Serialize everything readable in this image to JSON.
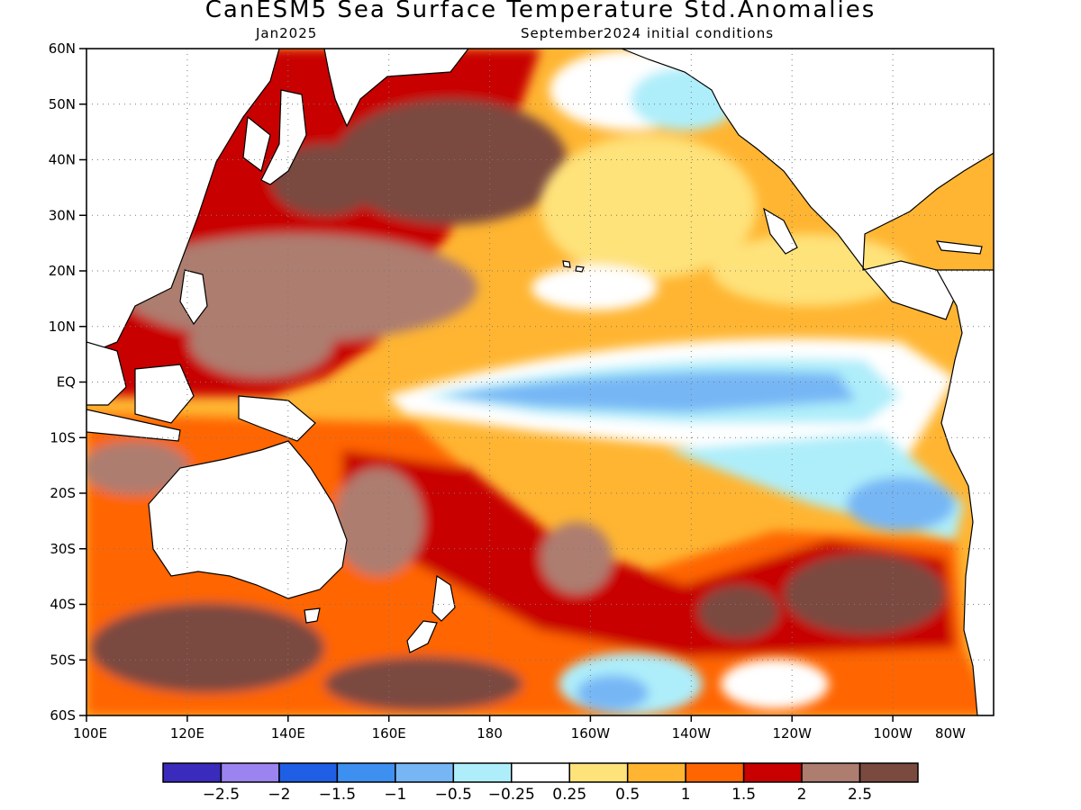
{
  "header": {
    "title": "CanESM5 Sea Surface Temperature Std.Anomalies",
    "valid_month": "Jan2025",
    "initial_conditions": "September2024 initial conditions"
  },
  "map": {
    "region": "Pacific Ocean",
    "lat_labels": [
      "60N",
      "50N",
      "40N",
      "30N",
      "20N",
      "10N",
      "EQ",
      "10S",
      "20S",
      "30S",
      "40S",
      "50S",
      "60S"
    ],
    "lon_labels": [
      "100E",
      "120E",
      "140E",
      "160E",
      "180",
      "160W",
      "140W",
      "120W",
      "100W",
      "80W"
    ],
    "grid_lines": "dotted"
  },
  "colorbar": {
    "colors": [
      "#3a2bbd",
      "#9b83f0",
      "#1e5fe6",
      "#3d8ff0",
      "#76b6f5",
      "#aeeefa",
      "#ffffff",
      "#fee27a",
      "#ffb531",
      "#ff6500",
      "#c80000",
      "#ad7d70",
      "#7a4a3f"
    ],
    "labels": [
      "−2.5",
      "−2",
      "−1.5",
      "−1",
      "−0.5",
      "−0.25",
      "0.25",
      "0.5",
      "1",
      "1.5",
      "2",
      "2.5"
    ]
  }
}
